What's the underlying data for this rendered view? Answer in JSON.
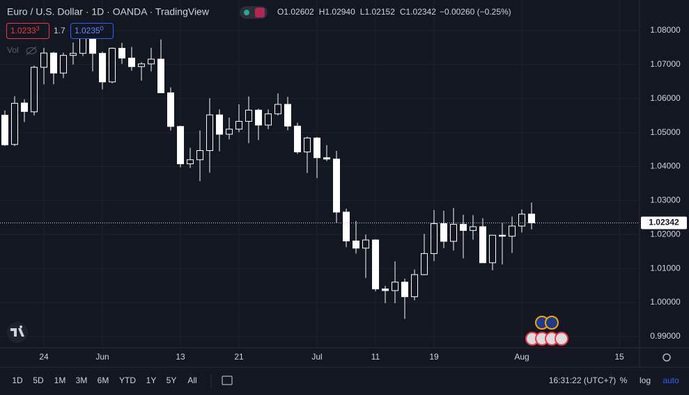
{
  "header": {
    "symbol": "Euro / U.S. Dollar · 1D · OANDA · TradingView",
    "ohlc": [
      {
        "label": "O",
        "value": "1.02602"
      },
      {
        "label": "H",
        "value": "1.02940"
      },
      {
        "label": "L",
        "value": "1.02152"
      },
      {
        "label": "C",
        "value": "1.02342"
      }
    ],
    "change": "−0.00260 (−0.25%)"
  },
  "quote": {
    "sell": {
      "main": "1.0233",
      "pip": "3"
    },
    "spread": "1.7",
    "buy": {
      "main": "1.0235",
      "pip": "0"
    }
  },
  "volume_label": "Vol",
  "chart_data": {
    "type": "candlestick",
    "categories": [
      null,
      null,
      null,
      null,
      "24",
      null,
      null,
      null,
      null,
      null,
      "Jun",
      null,
      null,
      null,
      null,
      null,
      null,
      null,
      "13",
      null,
      null,
      null,
      null,
      null,
      "21",
      null,
      null,
      null,
      null,
      null,
      null,
      null,
      "Jul",
      null,
      null,
      null,
      null,
      null,
      "11",
      null,
      null,
      null,
      null,
      null,
      "19",
      null,
      null,
      null,
      null,
      null,
      null,
      null,
      null,
      "Aug",
      null,
      null,
      null,
      null,
      null,
      null,
      null,
      null,
      null,
      "15"
    ],
    "open": [
      1.0551,
      1.0465,
      1.0587,
      1.0561,
      1.0692,
      1.0734,
      1.0675,
      1.0727,
      1.0733,
      1.0779,
      1.0733,
      1.0649,
      1.0748,
      1.0719,
      1.0694,
      1.0702,
      1.0716,
      1.0617,
      1.0518,
      1.0408,
      1.042,
      1.0447,
      1.0552,
      1.0495,
      1.051,
      1.0533,
      1.0566,
      1.0522,
      1.0555,
      1.0583,
      1.0519,
      1.0443,
      1.0484,
      1.0426,
      1.0422,
      1.0266,
      1.0181,
      1.016,
      1.0184,
      1.004,
      1.0035,
      1.006,
      1.0017,
      1.0082,
      1.0144,
      1.0232,
      1.018,
      1.023,
      1.0212,
      1.0223,
      1.0117,
      1.0198,
      1.0195,
      1.0225,
      1.02602,
      null,
      null,
      null,
      null,
      null,
      null,
      null,
      null,
      null
    ],
    "high": [
      1.0565,
      1.0607,
      1.0598,
      1.0697,
      1.0749,
      1.0737,
      1.0735,
      1.0765,
      1.0787,
      1.0787,
      1.0738,
      1.075,
      1.0764,
      1.0752,
      1.0707,
      1.0749,
      1.0774,
      1.0633,
      1.052,
      1.0455,
      1.0506,
      1.0601,
      1.0568,
      1.0544,
      1.0583,
      1.0606,
      1.057,
      1.0568,
      1.0615,
      1.0605,
      1.0529,
      1.0488,
      1.0487,
      1.0463,
      1.0446,
      1.0276,
      1.024,
      1.02,
      1.0186,
      1.0049,
      1.0121,
      1.007,
      1.0097,
      1.0202,
      1.0272,
      1.027,
      1.0278,
      1.0258,
      1.0257,
      1.0248,
      1.0198,
      1.0234,
      1.0253,
      1.0274,
      1.0294,
      null,
      null,
      null,
      null,
      null,
      null,
      null,
      null,
      null
    ],
    "low": [
      1.0461,
      1.046,
      1.0531,
      1.055,
      1.0642,
      1.0642,
      1.066,
      1.07,
      1.0725,
      1.068,
      1.0627,
      1.0645,
      1.0702,
      1.0682,
      1.0653,
      1.068,
      1.0617,
      1.0506,
      1.0398,
      1.0396,
      1.0357,
      1.0382,
      1.0445,
      1.048,
      1.0501,
      1.0469,
      1.0478,
      1.051,
      1.055,
      1.0507,
      1.0437,
      1.0381,
      1.0366,
      1.0416,
      1.0235,
      1.0163,
      1.0144,
      1.0072,
      1.0033,
      0.9998,
      0.9998,
      0.9952,
      1.0007,
      1.008,
      1.0122,
      1.016,
      1.0153,
      1.013,
      1.0185,
      1.012,
      1.0095,
      1.0112,
      1.0146,
      1.0206,
      1.0215,
      null,
      null,
      null,
      null,
      null,
      null,
      null,
      null,
      null
    ],
    "close": [
      1.0464,
      1.0586,
      1.0562,
      1.0692,
      1.0734,
      1.0675,
      1.0727,
      1.0733,
      1.0779,
      1.0733,
      1.0649,
      1.0748,
      1.0719,
      1.0694,
      1.0702,
      1.0716,
      1.0617,
      1.0518,
      1.0408,
      1.042,
      1.0447,
      1.0552,
      1.0495,
      1.051,
      1.0533,
      1.0566,
      1.0522,
      1.0555,
      1.0583,
      1.0519,
      1.0443,
      1.0484,
      1.0426,
      1.0422,
      1.0266,
      1.0181,
      1.016,
      1.0184,
      1.004,
      1.0035,
      1.006,
      1.0017,
      1.0082,
      1.0144,
      1.0232,
      1.018,
      1.023,
      1.0212,
      1.0223,
      1.0117,
      1.0198,
      1.0195,
      1.0225,
      1.026,
      1.02342,
      null,
      null,
      null,
      null,
      null,
      null,
      null,
      null,
      null
    ],
    "ylim": [
      0.9867,
      1.089
    ],
    "yticks": [
      {
        "value": 0.99,
        "label": "0.99000"
      },
      {
        "value": 1.0,
        "label": "1.00000"
      },
      {
        "value": 1.01,
        "label": "1.01000"
      },
      {
        "value": 1.02,
        "label": "1.02000"
      },
      {
        "value": 1.03,
        "label": "1.03000"
      },
      {
        "value": 1.04,
        "label": "1.04000"
      },
      {
        "value": 1.05,
        "label": "1.05000"
      },
      {
        "value": 1.06,
        "label": "1.06000"
      },
      {
        "value": 1.07,
        "label": "1.07000"
      },
      {
        "value": 1.08,
        "label": "1.08000"
      }
    ],
    "last_label": "1.02342",
    "grid": true,
    "up_color": "#131722",
    "down_color": "#ffffff",
    "wick_color": "#ffffff"
  },
  "toolbar": {
    "ranges": [
      "1D",
      "5D",
      "1M",
      "3M",
      "6M",
      "YTD",
      "1Y",
      "5Y",
      "All"
    ],
    "clock": "16:31:22 (UTC+7)",
    "options": [
      "%",
      "log",
      "auto"
    ]
  }
}
